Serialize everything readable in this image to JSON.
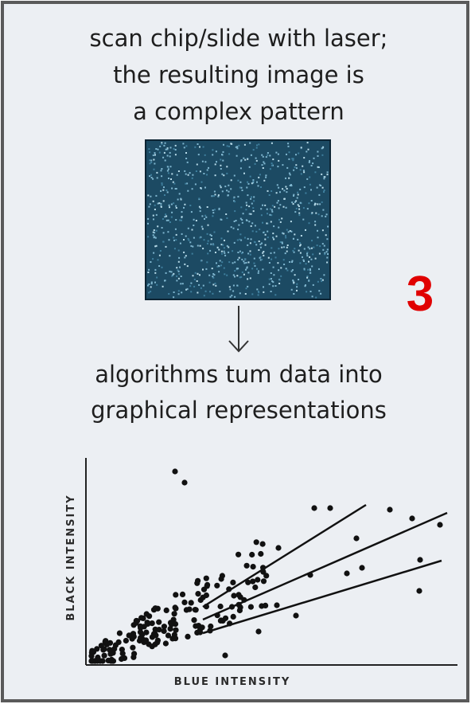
{
  "header": {
    "lines": [
      "scan chip/slide with laser;",
      "the resulting image is",
      "a complex pattern"
    ]
  },
  "step_number": "3",
  "middle": {
    "lines": [
      "algorithms tum data into",
      "graphical representations"
    ]
  },
  "plot": {
    "y_label": "BLACK INTENSITY",
    "x_label": "BLUE INTENSITY"
  }
}
